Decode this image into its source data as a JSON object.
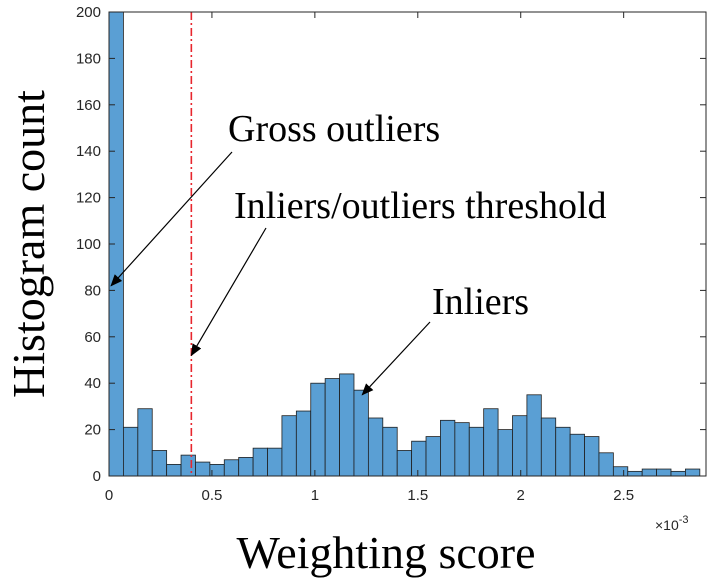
{
  "chart_data": {
    "type": "bar",
    "xlabel": "Weighting score",
    "ylabel": "Histogram count",
    "x_multiplier": "×10",
    "x_multiplier_exp": "-3",
    "xlim": [
      0,
      0.0029
    ],
    "ylim": [
      0,
      200
    ],
    "xticks": [
      0,
      0.5,
      1,
      1.5,
      2,
      2.5
    ],
    "yticks": [
      0,
      20,
      40,
      60,
      80,
      100,
      120,
      140,
      160,
      180,
      200
    ],
    "bin_width": 7e-05,
    "bins_start": 0,
    "values": [
      200,
      21,
      29,
      11,
      5,
      9,
      6,
      5,
      7,
      8,
      12,
      12,
      26,
      28,
      40,
      42,
      44,
      37,
      25,
      21,
      11,
      15,
      17,
      24,
      23,
      21,
      29,
      20,
      26,
      35,
      25,
      21,
      18,
      17,
      10,
      4,
      2,
      3,
      3,
      2,
      3
    ],
    "bar_color": "#5a9fd4",
    "bar_edge_color": "#1f1f1f",
    "threshold": {
      "x": 0.0004,
      "color": "#e8262e",
      "style": "dash-dot"
    },
    "annotations": [
      {
        "text": "Gross outliers",
        "target_x": 1e-05,
        "target_y": 82
      },
      {
        "text": "Inliers/outliers threshold",
        "target_x": 0.0004,
        "target_y": 52
      },
      {
        "text": "Inliers",
        "target_x": 0.00123,
        "target_y": 35
      }
    ]
  }
}
